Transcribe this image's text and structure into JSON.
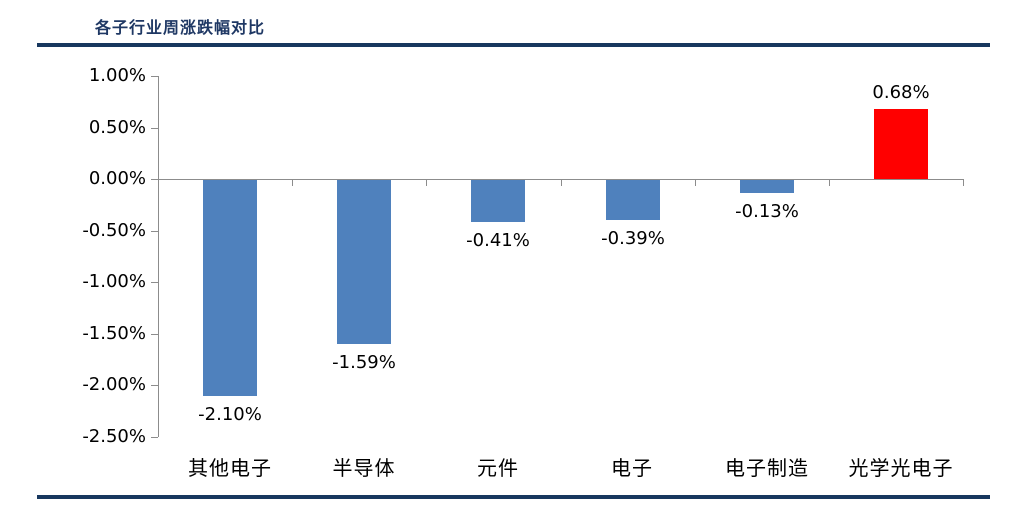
{
  "page": {
    "title": "各子行业周涨跌幅对比"
  },
  "chart_data": {
    "type": "bar",
    "title": "各子行业周涨跌幅对比",
    "categories": [
      "其他电子",
      "半导体",
      "元件",
      "电子",
      "电子制造",
      "光学光电子"
    ],
    "values": [
      -2.1,
      -1.59,
      -0.41,
      -0.39,
      -0.13,
      0.68
    ],
    "value_labels": [
      "-2.10%",
      "-1.59%",
      "-0.41%",
      "-0.39%",
      "-0.13%",
      "0.68%"
    ],
    "bar_colors": [
      "#4F81BD",
      "#4F81BD",
      "#4F81BD",
      "#4F81BD",
      "#4F81BD",
      "#FF0000"
    ],
    "ylim": [
      -2.5,
      1.0
    ],
    "ytick_values": [
      1.0,
      0.5,
      0.0,
      -0.5,
      -1.0,
      -1.5,
      -2.0,
      -2.5
    ],
    "ytick_labels": [
      "1.00%",
      "0.50%",
      "0.00%",
      "-0.50%",
      "-1.00%",
      "-1.50%",
      "-2.00%",
      "-2.50%"
    ],
    "xlabel": "",
    "ylabel": "",
    "grid": false,
    "legend": "none",
    "colors": {
      "negative_bar": "#4F81BD",
      "positive_bar": "#FF0000",
      "axis_line": "#8C8C8C",
      "title_text": "#1F3864",
      "divider_line": "#17375E",
      "label_text": "#000000"
    }
  }
}
